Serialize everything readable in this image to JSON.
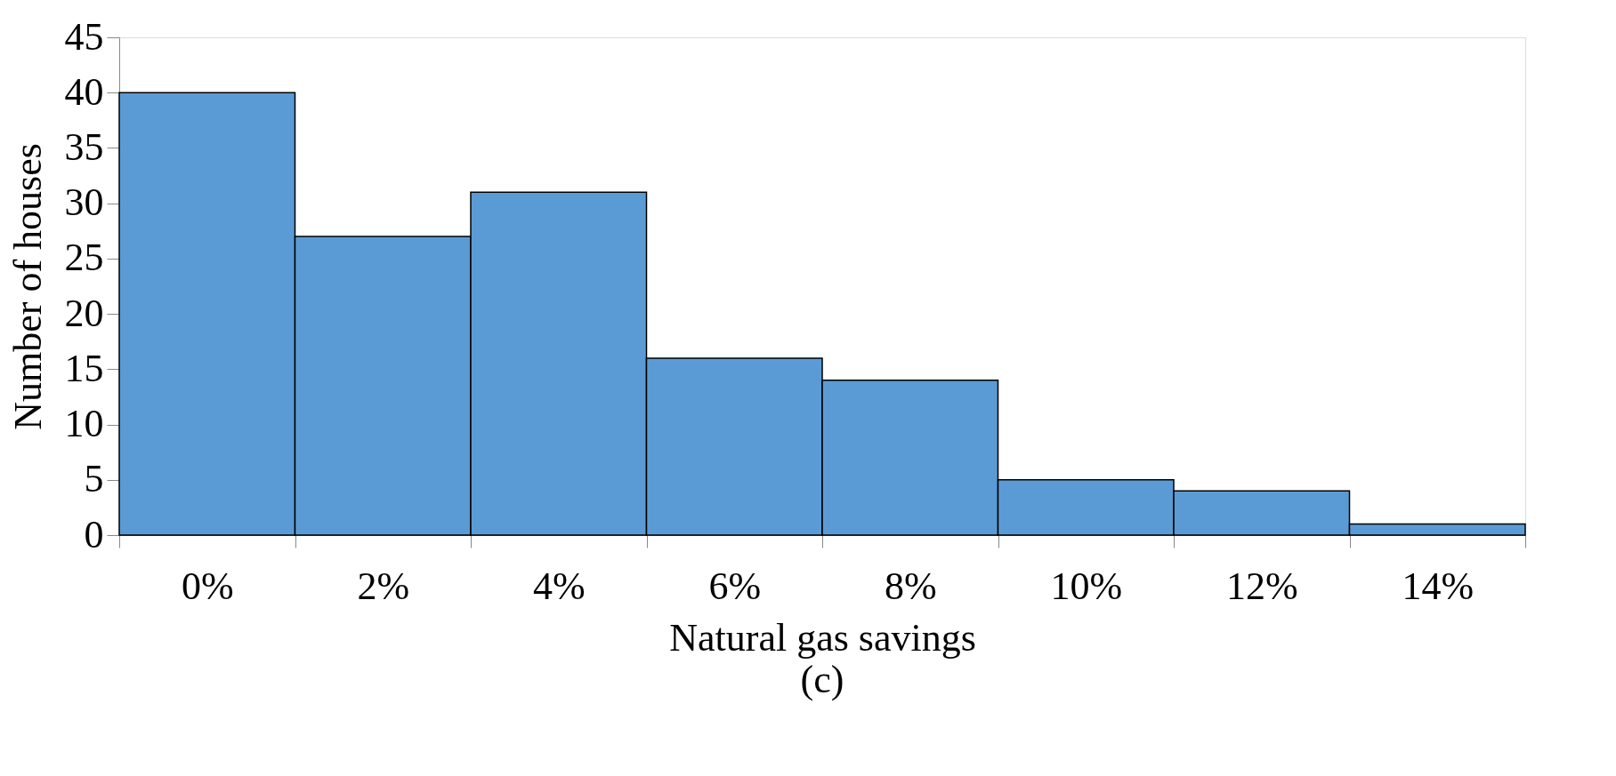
{
  "chart_data": {
    "type": "bar",
    "xlabel": "Natural gas savings",
    "ylabel": "Number of houses",
    "categories": [
      "0%",
      "2%",
      "4%",
      "6%",
      "8%",
      "10%",
      "12%",
      "14%"
    ],
    "values": [
      40,
      27,
      31,
      16,
      14,
      5,
      4,
      1
    ],
    "color": "#5b9bd5",
    "ylim": [
      0,
      45
    ],
    "yticks": [
      0,
      5,
      10,
      15,
      20,
      25,
      30,
      35,
      40,
      45
    ],
    "grid": false,
    "annotations": [
      "(c)"
    ]
  }
}
